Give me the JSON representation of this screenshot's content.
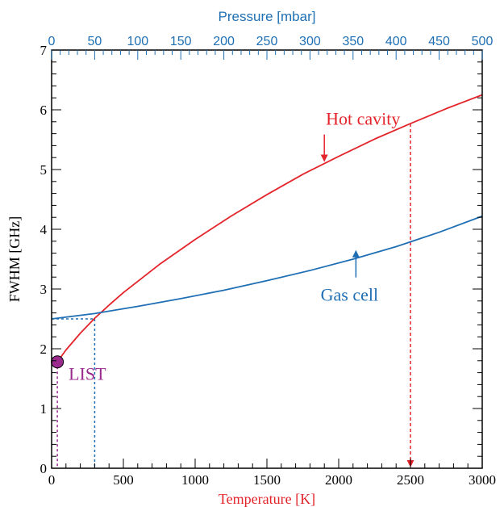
{
  "chart_data": {
    "type": "line",
    "xlabel": "Temperature [K]",
    "x2label": "Pressure [mbar]",
    "ylabel": "FWHM [GHz]",
    "xlim": [
      0,
      3000
    ],
    "x2lim": [
      0,
      500
    ],
    "ylim": [
      0,
      7
    ],
    "xticks": [
      0,
      500,
      1000,
      1500,
      2000,
      2500,
      3000
    ],
    "x2ticks": [
      0,
      50,
      100,
      150,
      200,
      250,
      300,
      350,
      400,
      450,
      500
    ],
    "yticks": [
      0,
      1,
      2,
      3,
      4,
      5,
      6,
      7
    ],
    "grid": false,
    "series": [
      {
        "name": "Hot cavity",
        "axis": "temperature",
        "color": "#e3242b",
        "x": [
          40,
          100,
          200,
          300,
          400,
          500,
          750,
          1000,
          1250,
          1500,
          1750,
          1900,
          2000,
          2250,
          2500,
          2750,
          3000
        ],
        "y": [
          1.78,
          1.98,
          2.26,
          2.51,
          2.73,
          2.94,
          3.41,
          3.83,
          4.22,
          4.58,
          4.92,
          5.1,
          5.22,
          5.51,
          5.77,
          6.02,
          6.25
        ]
      },
      {
        "name": "Gas cell",
        "axis": "pressure",
        "color": "#1f6fb4",
        "x": [
          0,
          50,
          100,
          150,
          200,
          250,
          300,
          350,
          400,
          450,
          500
        ],
        "y": [
          2.5,
          2.59,
          2.71,
          2.84,
          2.98,
          3.14,
          3.31,
          3.5,
          3.71,
          3.95,
          4.22
        ]
      }
    ],
    "markers": [
      {
        "label": "LIST",
        "x": 40,
        "y": 1.78,
        "color": "#9b2a8f"
      }
    ],
    "reference_lines": [
      {
        "series": "Hot cavity",
        "x": 2500,
        "y": 5.77,
        "style": "dotted-arrow",
        "color": "#e3242b"
      },
      {
        "series": "Gas cell",
        "x": 300,
        "y": 2.5,
        "style": "dotted",
        "color": "#1f6fb4"
      },
      {
        "series": "LIST",
        "x": 40,
        "y": 1.78,
        "style": "dotted",
        "color": "#9b2a8f"
      }
    ],
    "annotations": [
      {
        "text": "Hot cavity",
        "color": "#e3242b",
        "arrow_x": 1900,
        "arrow_y": 5.1
      },
      {
        "text": "Gas cell",
        "color": "#1f6fb4",
        "arrow_x": 2120,
        "arrow_y": 3.68
      },
      {
        "text": "LIST",
        "color": "#9b2a8f"
      }
    ]
  }
}
